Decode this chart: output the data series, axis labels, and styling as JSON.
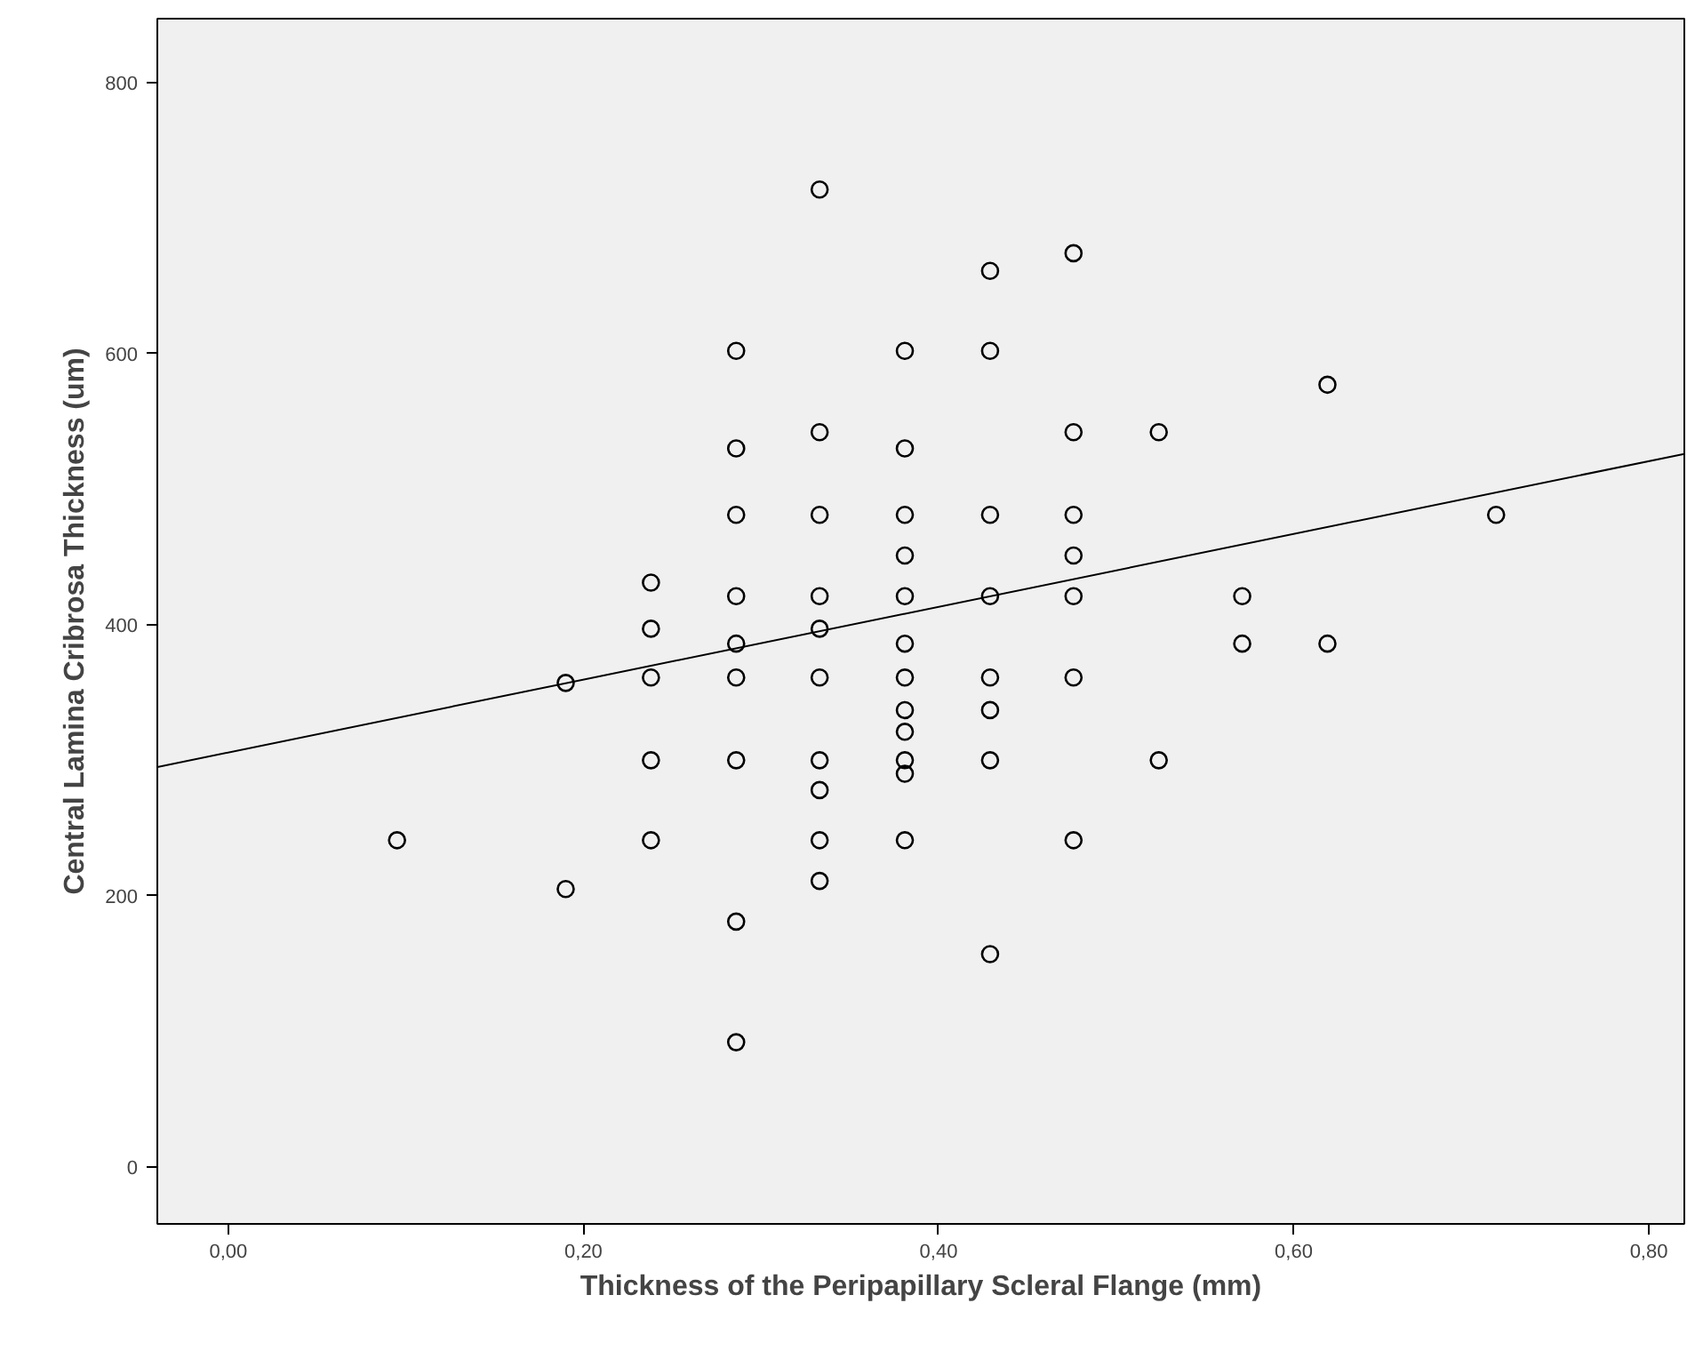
{
  "chart_data": {
    "type": "scatter",
    "xlabel": "Thickness of the Peripapillary Scleral Flange (mm)",
    "ylabel": "Central Lamina Cribrosa Thickness (um)",
    "xlim": [
      -0.04,
      0.82
    ],
    "ylim": [
      -42,
      847
    ],
    "xticks": [
      {
        "value": 0,
        "label": "0,00"
      },
      {
        "value": 0.2,
        "label": "0,20"
      },
      {
        "value": 0.4,
        "label": "0,40"
      },
      {
        "value": 0.6,
        "label": "0,60"
      },
      {
        "value": 0.8,
        "label": "0,80"
      }
    ],
    "yticks": [
      0,
      200,
      400,
      600,
      800
    ],
    "grid": false,
    "series": [
      {
        "color": "#000000",
        "marker": "circle",
        "x": [
          0.095,
          0.19,
          0.19,
          0.238,
          0.238,
          0.238,
          0.238,
          0.238,
          0.286,
          0.286,
          0.286,
          0.286,
          0.286,
          0.286,
          0.286,
          0.286,
          0.286,
          0.333,
          0.333,
          0.333,
          0.333,
          0.333,
          0.333,
          0.333,
          0.333,
          0.333,
          0.333,
          0.381,
          0.381,
          0.381,
          0.381,
          0.381,
          0.381,
          0.381,
          0.381,
          0.381,
          0.381,
          0.381,
          0.381,
          0.429,
          0.429,
          0.429,
          0.429,
          0.429,
          0.429,
          0.429,
          0.429,
          0.476,
          0.476,
          0.476,
          0.476,
          0.476,
          0.476,
          0.476,
          0.524,
          0.524,
          0.571,
          0.571,
          0.619,
          0.619,
          0.714
        ],
        "values": [
          241,
          357,
          205,
          431,
          397,
          361,
          300,
          241,
          602,
          530,
          481,
          421,
          386,
          361,
          300,
          181,
          92,
          721,
          542,
          481,
          421,
          397,
          361,
          300,
          278,
          241,
          211,
          602,
          530,
          481,
          451,
          421,
          386,
          361,
          337,
          321,
          300,
          290,
          241,
          661,
          602,
          481,
          421,
          361,
          337,
          300,
          157,
          674,
          542,
          481,
          451,
          421,
          361,
          241,
          542,
          300,
          421,
          386,
          577,
          386,
          481
        ]
      },
      {
        "type": "line",
        "marker": "none",
        "color": "#000000",
        "x": [
          -0.04,
          0.82
        ],
        "values": [
          295,
          526
        ]
      }
    ]
  }
}
